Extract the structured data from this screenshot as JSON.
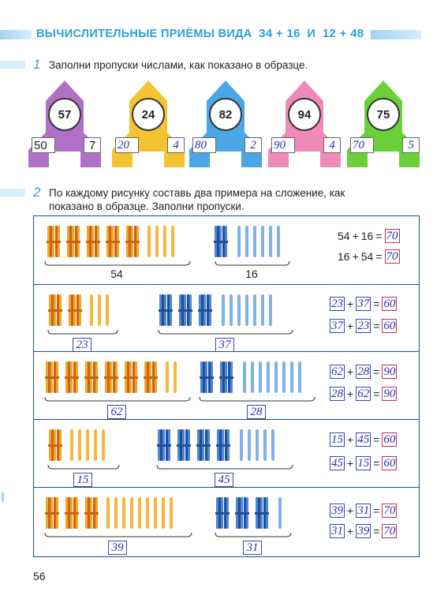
{
  "header": {
    "title": "ВЫЧИСЛИТЕЛЬНЫЕ ПРИЁМЫ ВИДА",
    "expr1": "34 + 16",
    "conj": "и",
    "expr2": "12 + 48"
  },
  "task1": {
    "number": "1",
    "text": "Заполни пропуски числами, как показано в образце.",
    "rockets": [
      {
        "top": "57",
        "left": "50",
        "right": "7",
        "color": "#b070c8"
      },
      {
        "top": "24",
        "left": "20",
        "right": "4",
        "color": "#f4c430"
      },
      {
        "top": "82",
        "left": "80",
        "right": "2",
        "color": "#4aa6e6"
      },
      {
        "top": "94",
        "left": "90",
        "right": "4",
        "color": "#f08ab8"
      },
      {
        "top": "75",
        "left": "70",
        "right": "5",
        "color": "#6ad03a"
      }
    ]
  },
  "task2": {
    "number": "2",
    "text_line1": "По каждому рисунку составь два примера на сложение, как",
    "text_line2": "показано в образце. Заполни пропуски.",
    "rows": [
      {
        "orange_bundles": 5,
        "orange_sticks": 4,
        "blue_bundles": 1,
        "blue_sticks": 6,
        "label_a": "54",
        "label_b": "16",
        "eq1": {
          "a": "54",
          "b": "16",
          "sum": "70"
        },
        "eq2": {
          "a": "16",
          "b": "54",
          "sum": "70"
        }
      },
      {
        "orange_bundles": 2,
        "orange_sticks": 3,
        "blue_bundles": 3,
        "blue_sticks": 7,
        "label_a": "23",
        "label_b": "37",
        "eq1": {
          "a": "23",
          "b": "37",
          "sum": "60"
        },
        "eq2": {
          "a": "37",
          "b": "23",
          "sum": "60"
        }
      },
      {
        "orange_bundles": 6,
        "orange_sticks": 2,
        "blue_bundles": 2,
        "blue_sticks": 8,
        "label_a": "62",
        "label_b": "28",
        "eq1": {
          "a": "62",
          "b": "28",
          "sum": "90"
        },
        "eq2": {
          "a": "28",
          "b": "62",
          "sum": "90"
        }
      },
      {
        "orange_bundles": 1,
        "orange_sticks": 5,
        "blue_bundles": 4,
        "blue_sticks": 5,
        "label_a": "15",
        "label_b": "45",
        "eq1": {
          "a": "15",
          "b": "45",
          "sum": "60"
        },
        "eq2": {
          "a": "45",
          "b": "15",
          "sum": "60"
        }
      },
      {
        "orange_bundles": 3,
        "orange_sticks": 9,
        "blue_bundles": 3,
        "blue_sticks": 1,
        "label_a": "39",
        "label_b": "31",
        "eq1": {
          "a": "39",
          "b": "31",
          "sum": "70"
        },
        "eq2": {
          "a": "31",
          "b": "39",
          "sum": "70"
        }
      }
    ],
    "plus": "+",
    "equals": "="
  },
  "page_number": "56"
}
